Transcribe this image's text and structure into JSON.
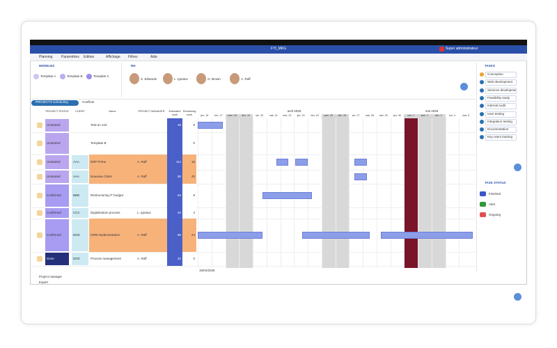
{
  "window": {
    "title": "FYI_MKG",
    "user": "Super administrateur",
    "menu": [
      "Planning",
      "Paramètres",
      "Édition",
      "Affichage",
      "Filtres",
      "Aide"
    ]
  },
  "models": {
    "title": "MODELES",
    "items": [
      "Template A",
      "Template B",
      "Template C"
    ]
  },
  "rh": {
    "title": "RH",
    "people": [
      "S. Edwards",
      "L. Ignatus",
      "G. Brown",
      "A. Raff"
    ]
  },
  "tasks": {
    "title": "TASKS",
    "items": [
      "Conception",
      "Web development",
      "Services development",
      "Feasibility study",
      "Internal Audit",
      "User testing",
      "Integration testing",
      "Documentation",
      "Key users training"
    ]
  },
  "task_status": {
    "title": "TASK STATUS",
    "items": [
      "Finished",
      "Alert",
      "Ongoing"
    ]
  },
  "tabs": [
    "PROJECTS scheduling",
    "Conflicts"
  ],
  "table": {
    "columns": [
      "PROJECT STATUS",
      "CLIENT",
      "Name",
      "PROJECT MANAGER",
      "Estimated work",
      "Remaining work"
    ],
    "rows": [
      [
        "Unstarted",
        "",
        "Test-un 123",
        "",
        "48",
        "8"
      ],
      [
        "Unstarted",
        "",
        "Template B",
        "",
        "",
        "0"
      ],
      [
        "Unstarted",
        "AAA",
        "ERP Prime",
        "A. Raff",
        "112",
        "16"
      ],
      [
        "Unstarted",
        "AAA",
        "Nouveau Client",
        "A. Raff",
        "80",
        "20"
      ],
      [
        "Confirmed",
        "BBB",
        "Restructuring IT budget",
        "",
        "64",
        "8"
      ],
      [
        "Confirmed",
        "CCC",
        "Digitalization process",
        "L. Ignatus",
        "40",
        "4"
      ],
      [
        "Confirmed",
        "DDD",
        "CRM implementation",
        "A. Raff",
        "96",
        "24"
      ],
      [
        "Done",
        "DDD",
        "Process management",
        "A. Raff",
        "32",
        "0"
      ]
    ]
  },
  "timeline": {
    "months": [
      "avril 2026",
      "mai 2026"
    ],
    "days": [
      "jeu. 16",
      "ven. 17",
      "sam. 18",
      "dim. 19",
      "lun. 20",
      "mar. 21",
      "mer. 22",
      "jeu. 23",
      "ven. 24",
      "sam. 25",
      "dim. 26",
      "lun. 27",
      "mar. 28",
      "mer. 29",
      "jeu. 30",
      "ven. 1",
      "sam. 2",
      "dim. 3",
      "lun. 4",
      "mar. 5"
    ],
    "date": "16/04/2026"
  },
  "footer_rows": [
    "Project manager",
    "Expert"
  ]
}
